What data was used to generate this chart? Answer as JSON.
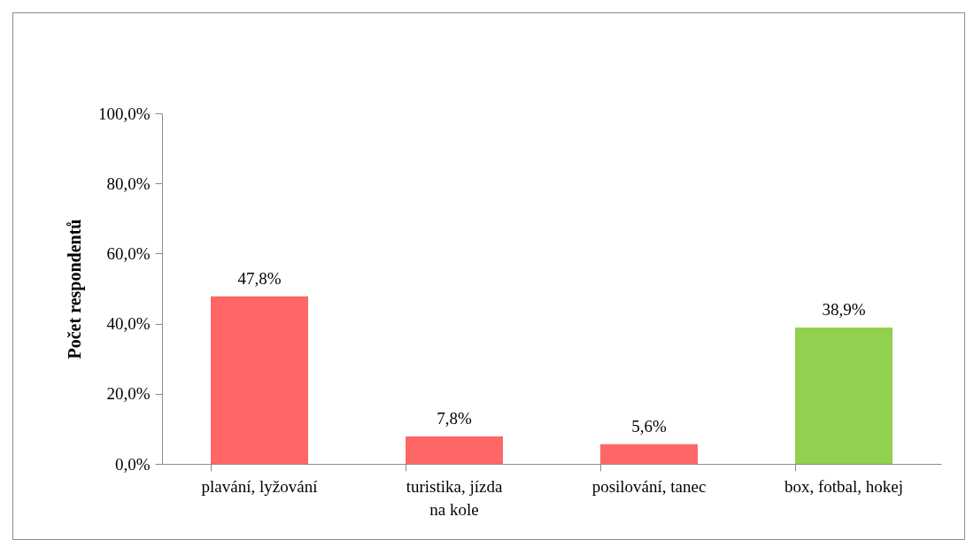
{
  "chart_data": {
    "type": "bar",
    "ylabel": "Počet respondentů",
    "categories": [
      "plavání, lyžování",
      "turistika, jízda na kole",
      "posilování, tanec",
      "box, fotbal, hokej"
    ],
    "values": [
      47.8,
      7.8,
      5.6,
      38.9
    ],
    "colors": [
      "#ff6666",
      "#ff6666",
      "#ff6666",
      "#92d050"
    ],
    "value_labels": [
      "47,8%",
      "7,8%",
      "5,6%",
      "38,9%"
    ],
    "ylim": [
      0,
      100
    ],
    "yticks": [
      {
        "value": 0,
        "label": "0,0%"
      },
      {
        "value": 20,
        "label": "20,0%"
      },
      {
        "value": 40,
        "label": "40,0%"
      },
      {
        "value": 60,
        "label": "60,0%"
      },
      {
        "value": 80,
        "label": "80,0%"
      },
      {
        "value": 100,
        "label": "100,0%"
      }
    ],
    "grid": false
  }
}
